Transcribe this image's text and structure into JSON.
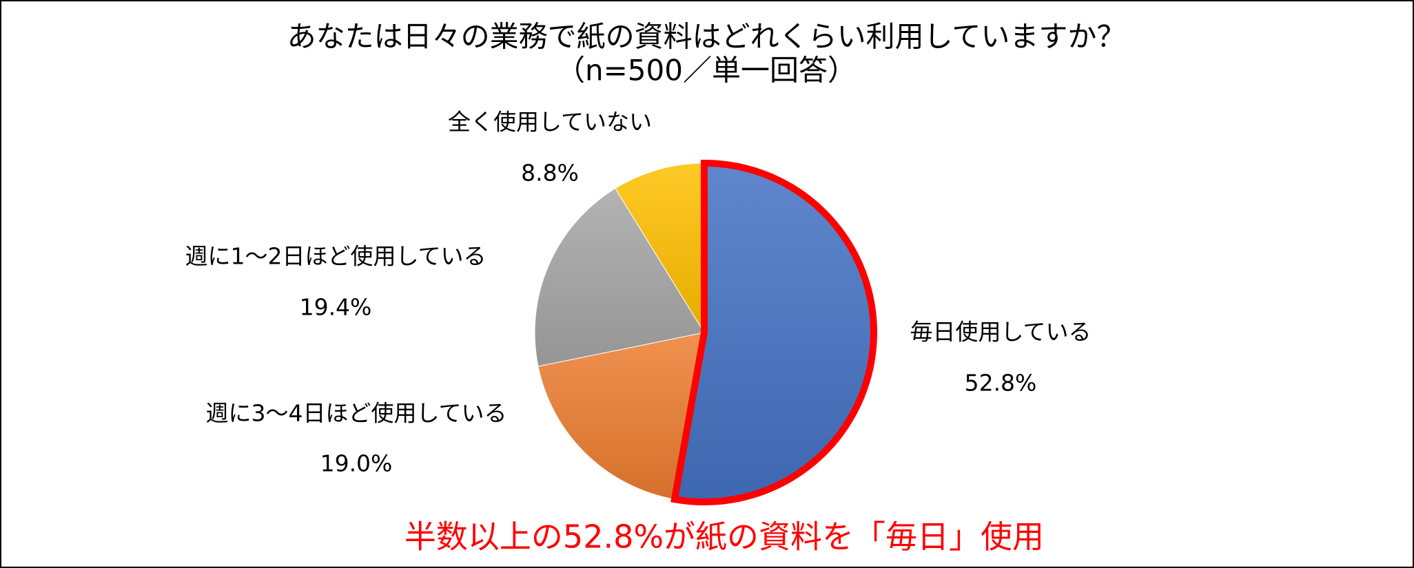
{
  "chart_data": {
    "type": "pie",
    "title": "あなたは日々の業務で紙の資料はどれくらい利用していますか？",
    "subtitle": "（n=500／単一回答）",
    "categories": [
      "毎日使用している",
      "週に3〜4日ほど使用している",
      "週に1〜2日ほど使用している",
      "全く使用していない"
    ],
    "values": [
      52.8,
      19.0,
      19.4,
      8.8
    ],
    "value_labels": [
      "52.8%",
      "19.0%",
      "19.4%",
      "8.8%"
    ],
    "colors": [
      "#4472c4",
      "#ed7d31",
      "#a5a5a5",
      "#ffc000"
    ],
    "highlight": {
      "index": 0,
      "color": "#ff0000"
    },
    "annotation": "半数以上の52.8%が紙の資料を「毎日」使用"
  }
}
